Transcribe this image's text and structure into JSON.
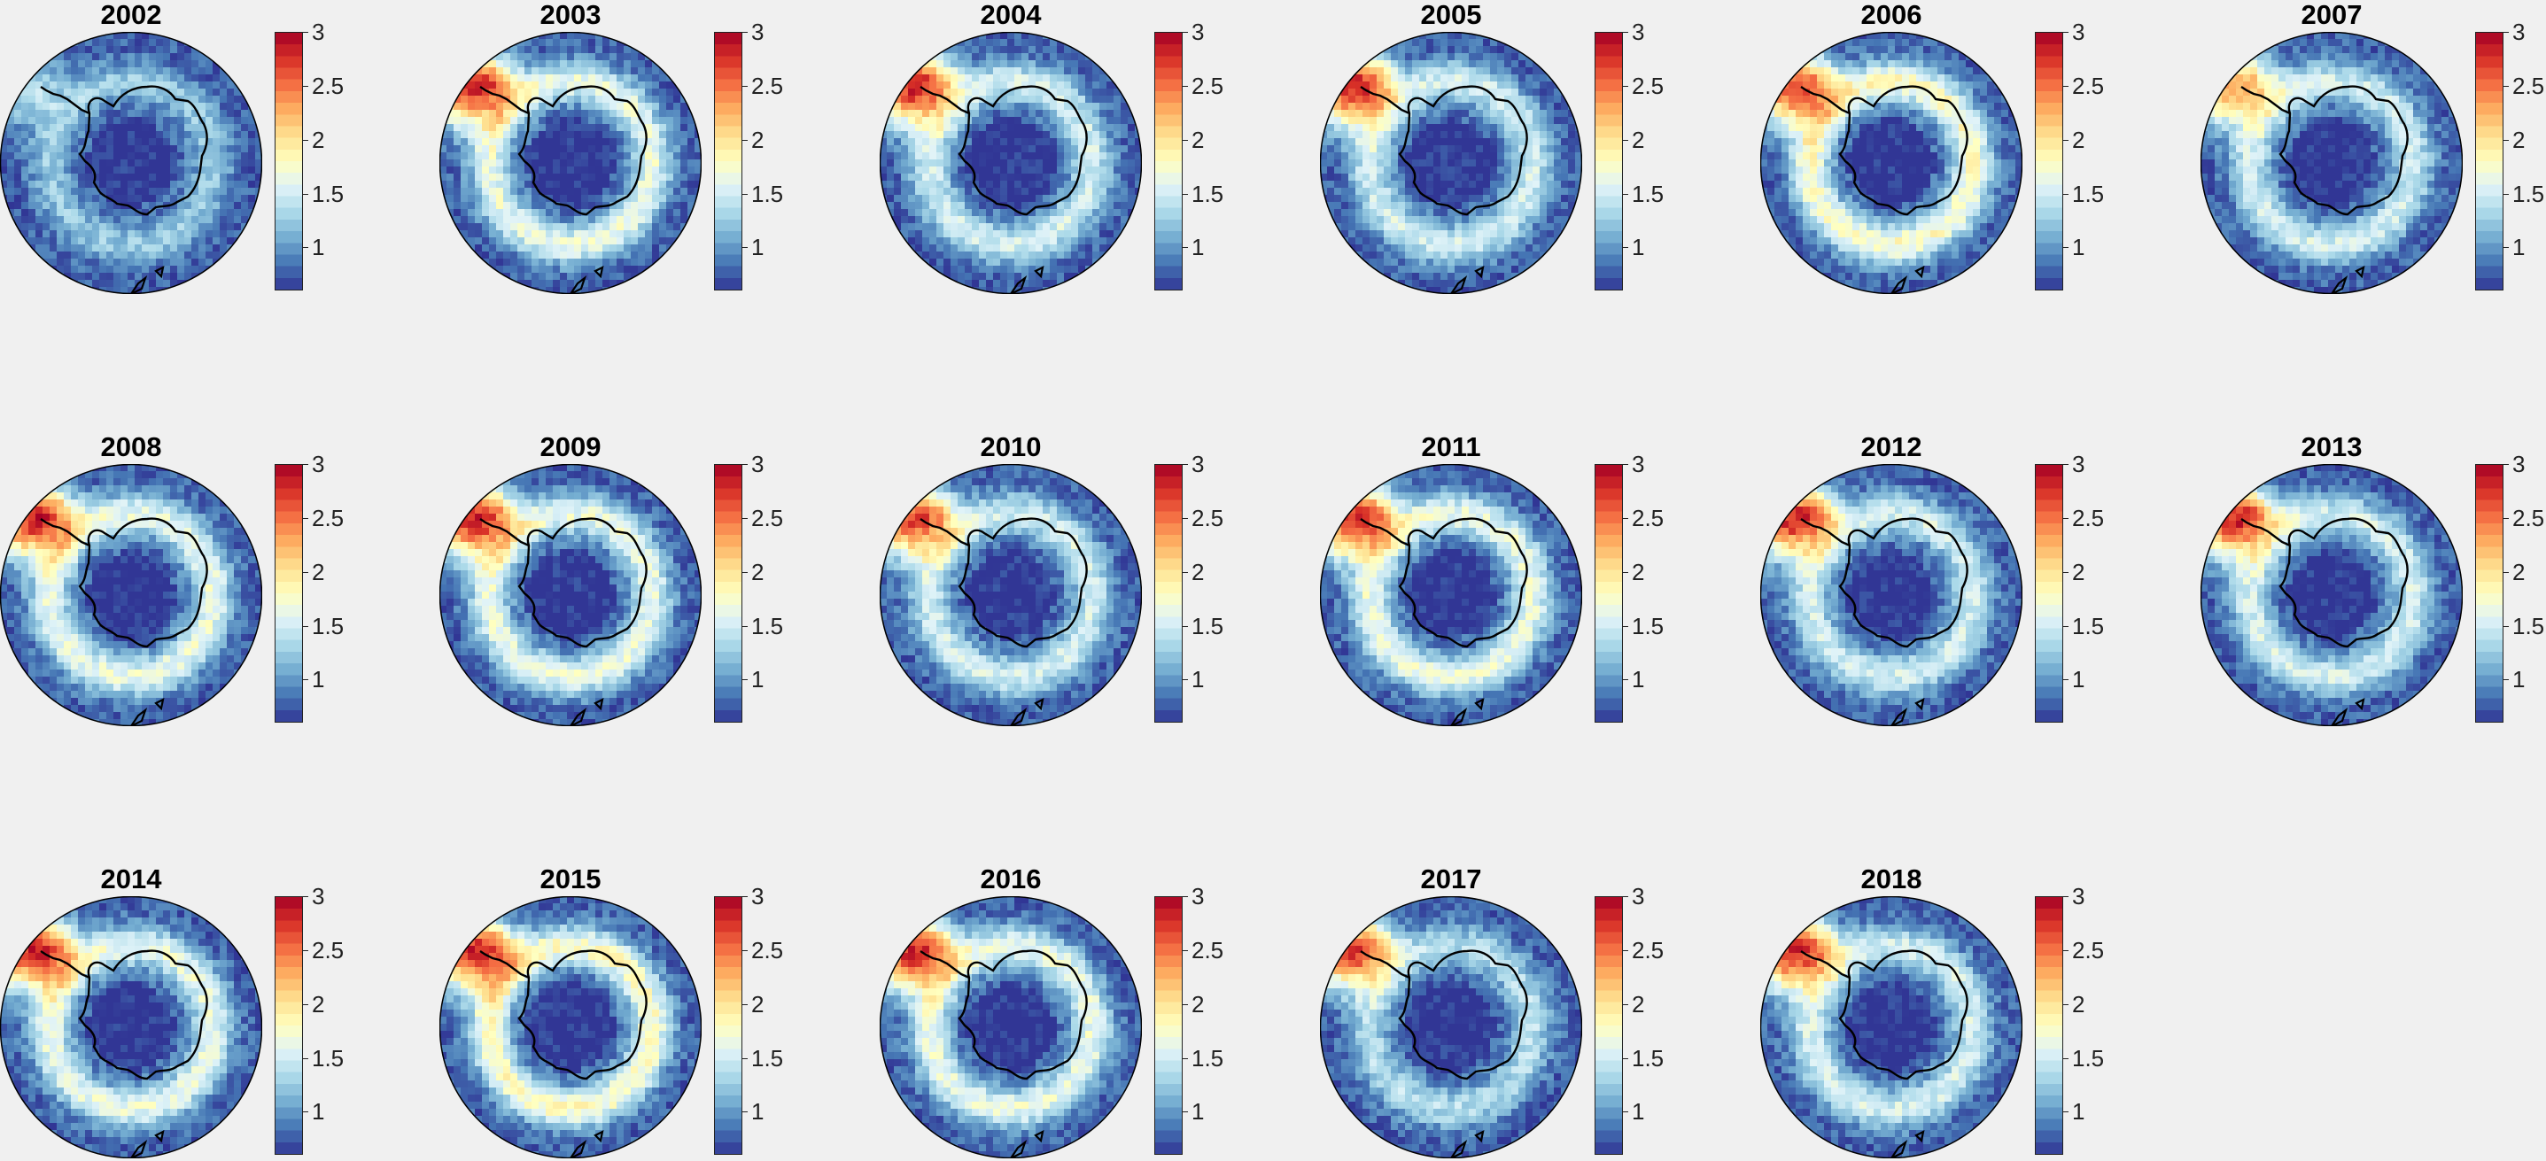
{
  "colorbar": {
    "ticks": [
      "3",
      "2.5",
      "2",
      "1.5",
      "1"
    ],
    "tick_values": [
      3,
      2.5,
      2,
      1.5,
      1
    ],
    "range": [
      0.6,
      3.0
    ],
    "colormap": "RdYlBu_r",
    "colors": [
      "#313695",
      "#4575b4",
      "#74add1",
      "#abd9e9",
      "#e0f3f8",
      "#ffffbf",
      "#fee090",
      "#fdae61",
      "#f46d43",
      "#d73027",
      "#a50026"
    ]
  },
  "chart_data": {
    "type": "heatmap",
    "layout": "3 rows x 6 columns grid of south polar stereographic maps, each with its own colorbar",
    "panels": [
      {
        "title": "2002"
      },
      {
        "title": "2003"
      },
      {
        "title": "2004"
      },
      {
        "title": "2005"
      },
      {
        "title": "2006"
      },
      {
        "title": "2007"
      },
      {
        "title": "2008"
      },
      {
        "title": "2009"
      },
      {
        "title": "2010"
      },
      {
        "title": "2011"
      },
      {
        "title": "2012"
      },
      {
        "title": "2013"
      },
      {
        "title": "2014"
      },
      {
        "title": "2015"
      },
      {
        "title": "2016"
      },
      {
        "title": "2017"
      },
      {
        "title": "2018"
      }
    ],
    "colorbar_ticks": [
      1,
      1.5,
      2,
      2.5,
      3
    ],
    "colorbar_range": [
      0.6,
      3.0
    ],
    "field_summary": [
      {
        "year": "2002",
        "plume_peak": 1.8,
        "ring_mean": 1.2
      },
      {
        "year": "2003",
        "plume_peak": 3.0,
        "ring_mean": 1.5
      },
      {
        "year": "2004",
        "plume_peak": 3.0,
        "ring_mean": 1.4
      },
      {
        "year": "2005",
        "plume_peak": 3.0,
        "ring_mean": 1.4
      },
      {
        "year": "2006",
        "plume_peak": 2.9,
        "ring_mean": 1.6
      },
      {
        "year": "2007",
        "plume_peak": 2.6,
        "ring_mean": 1.4
      },
      {
        "year": "2008",
        "plume_peak": 3.0,
        "ring_mean": 1.5
      },
      {
        "year": "2009",
        "plume_peak": 3.0,
        "ring_mean": 1.5
      },
      {
        "year": "2010",
        "plume_peak": 2.9,
        "ring_mean": 1.4
      },
      {
        "year": "2011",
        "plume_peak": 3.0,
        "ring_mean": 1.5
      },
      {
        "year": "2012",
        "plume_peak": 3.0,
        "ring_mean": 1.4
      },
      {
        "year": "2013",
        "plume_peak": 3.0,
        "ring_mean": 1.4
      },
      {
        "year": "2014",
        "plume_peak": 3.0,
        "ring_mean": 1.5
      },
      {
        "year": "2015",
        "plume_peak": 3.0,
        "ring_mean": 1.6
      },
      {
        "year": "2016",
        "plume_peak": 3.0,
        "ring_mean": 1.5
      },
      {
        "year": "2017",
        "plume_peak": 2.9,
        "ring_mean": 1.3
      },
      {
        "year": "2018",
        "plume_peak": 3.0,
        "ring_mean": 1.4
      }
    ]
  }
}
